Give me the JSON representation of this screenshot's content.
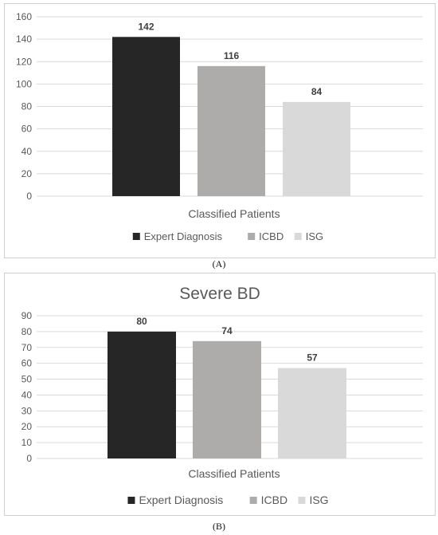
{
  "chart_data": [
    {
      "type": "bar",
      "title": "",
      "xlabel": "Classified Patients",
      "ylabel": "",
      "categories": [
        "Classified Patients"
      ],
      "series": [
        {
          "name": "Expert Diagnosis",
          "values": [
            142
          ],
          "color": "#262626"
        },
        {
          "name": "ICBD",
          "values": [
            116
          ],
          "color": "#aeabab"
        },
        {
          "name": "ISG",
          "values": [
            84
          ],
          "color": "#d9d9d9"
        }
      ],
      "ylim": [
        0,
        160
      ],
      "yticks": [
        0,
        20,
        40,
        60,
        80,
        100,
        120,
        140,
        160
      ],
      "grid": true,
      "legend_position": "bottom",
      "caption": "(A)"
    },
    {
      "type": "bar",
      "title": "Severe BD",
      "xlabel": "Classified Patients",
      "ylabel": "",
      "categories": [
        "Classified Patients"
      ],
      "series": [
        {
          "name": "Expert Diagnosis",
          "values": [
            80
          ],
          "color": "#262626"
        },
        {
          "name": "ICBD",
          "values": [
            74
          ],
          "color": "#aeabab"
        },
        {
          "name": "ISG",
          "values": [
            57
          ],
          "color": "#d9d9d9"
        }
      ],
      "ylim": [
        0,
        90
      ],
      "yticks": [
        0,
        10,
        20,
        30,
        40,
        50,
        60,
        70,
        80,
        90
      ],
      "grid": true,
      "legend_position": "bottom",
      "caption": "(B)"
    }
  ]
}
